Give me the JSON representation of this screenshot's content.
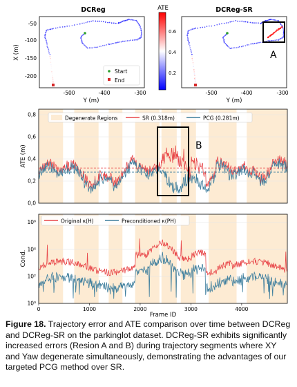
{
  "figure": {
    "caption_label": "Figure 18.",
    "caption_text": "Trajectory error and ATE comparison over time between DCReg and DCReg-SR on the parkinglot dataset. DCReg-SR exhibits significantly increased errors (Resion A and B) during trajectory segments where XY and Yaw degenerate simultaneously, demonstrating the advantages of our targeted PCG method over SR."
  },
  "chart_data": [
    {
      "type": "scatter",
      "title": "DCReg",
      "xlabel": "Y (m)",
      "ylabel": "X (m)",
      "xlim": [
        -600,
        -300
      ],
      "ylim": [
        -225,
        -40
      ],
      "xticks": [
        "-500",
        "-400",
        "-300"
      ],
      "yticks": [
        "-50",
        "-100",
        "-150",
        "-200"
      ],
      "legend": [
        {
          "label": "Start",
          "color": "#2ca02c"
        },
        {
          "label": "End",
          "color": "#d62728"
        }
      ],
      "legend_position": "bottom-right",
      "colorbar": {
        "label": "ATE",
        "min": 0.05,
        "max": 0.75,
        "ticks": [
          "0.2",
          "0.4",
          "0.6"
        ],
        "colormap": "bwr"
      }
    },
    {
      "type": "scatter",
      "title": "DCReg-SR",
      "xlabel": "Y (m)",
      "xlim": [
        -600,
        -300
      ],
      "ylim": [
        -225,
        -40
      ],
      "xticks": [
        "-500",
        "-400",
        "-300"
      ],
      "annotation": "A"
    },
    {
      "type": "line",
      "title": "",
      "ylabel": "ATE (m)",
      "ylim": [
        0,
        0.85
      ],
      "yticks": [
        "0,0",
        "0,2",
        "0,4",
        "0,6",
        "0,8"
      ],
      "xlim": [
        0,
        4900
      ],
      "series": [
        {
          "name": "SR (0.318m)",
          "color": "#e8474a",
          "mean": 0.318
        },
        {
          "name": "PCG (0.281m)",
          "color": "#3f7f9e",
          "mean": 0.281
        }
      ],
      "shaded_label": "Degenerate Regions",
      "annotation": "B",
      "legend_position": "top"
    },
    {
      "type": "line",
      "title": "",
      "xlabel": "Frame ID",
      "ylabel": "Cond.",
      "yscale": "log",
      "ylim_exp": [
        0,
        6.6
      ],
      "yticks": [
        "10⁰",
        "10²",
        "10⁴",
        "10⁶"
      ],
      "xticks": [
        "0",
        "1000",
        "2000",
        "3000",
        "4000"
      ],
      "xlim": [
        0,
        4900
      ],
      "series": [
        {
          "name": "Original κ(H)",
          "color": "#e8474a"
        },
        {
          "name": "Preconditioned κ(PH)",
          "color": "#3f7f9e"
        }
      ],
      "legend_position": "top-left"
    }
  ]
}
